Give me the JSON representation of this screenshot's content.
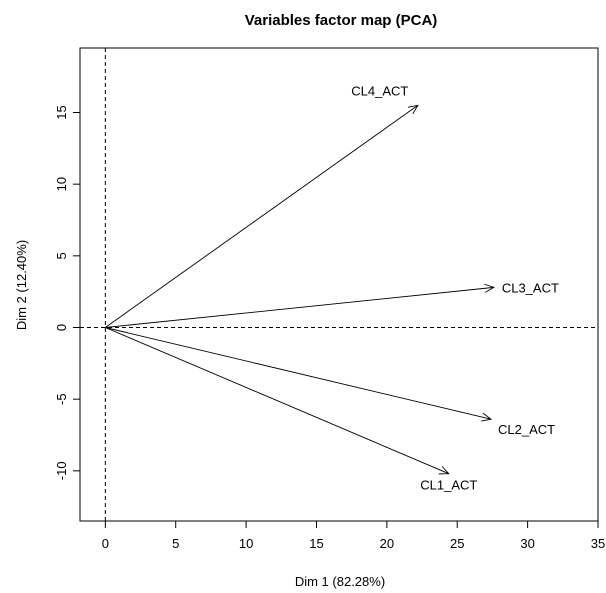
{
  "chart_data": {
    "type": "scatter",
    "title": "Variables factor map (PCA)",
    "xlabel": "Dim 1 (82.28%)",
    "ylabel": "Dim 2 (12.40%)",
    "xlim": [
      -1.8,
      35
    ],
    "ylim": [
      -13.5,
      19.5
    ],
    "xticks": [
      0,
      5,
      10,
      15,
      20,
      25,
      30,
      35
    ],
    "yticks": [
      -10,
      -5,
      0,
      5,
      10,
      15
    ],
    "reference_lines": {
      "x": 0,
      "y": 0,
      "style": "dashed"
    },
    "grid": false,
    "vectors": [
      {
        "name": "CL4_ACT",
        "x": 22.2,
        "y": 15.5
      },
      {
        "name": "CL3_ACT",
        "x": 27.6,
        "y": 2.8
      },
      {
        "name": "CL2_ACT",
        "x": 27.4,
        "y": -6.4
      },
      {
        "name": "CL1_ACT",
        "x": 24.4,
        "y": -10.2
      }
    ]
  }
}
